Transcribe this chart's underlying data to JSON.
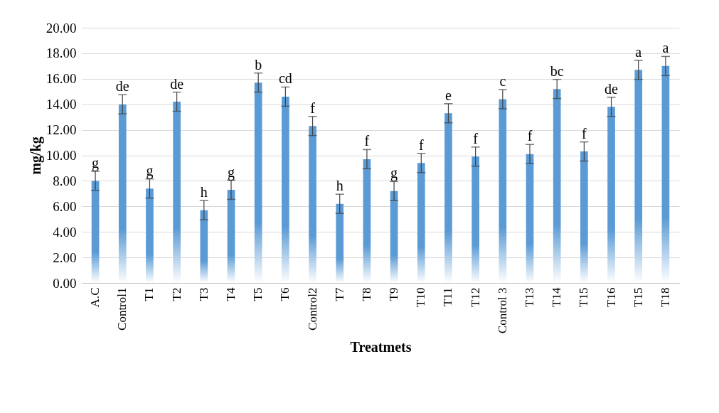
{
  "chart_data": {
    "type": "bar",
    "xlabel": "Treatmets",
    "ylabel": "mg/kg",
    "categories": [
      "A.C",
      "Control1",
      "T1",
      "T2",
      "T3",
      "T4",
      "T5",
      "T6",
      "Control2",
      "T7",
      "T8",
      "T9",
      "T10",
      "T11",
      "T12",
      "Control 3",
      "T13",
      "T14",
      "T15",
      "T16",
      "T15",
      "T18"
    ],
    "values": [
      8.0,
      14.0,
      7.4,
      14.2,
      5.7,
      7.3,
      15.7,
      14.6,
      12.3,
      6.2,
      9.7,
      7.2,
      9.4,
      13.3,
      9.9,
      14.4,
      10.1,
      15.2,
      10.3,
      13.8,
      16.7,
      17.0
    ],
    "errors": [
      0.75,
      0.75,
      0.75,
      0.75,
      0.75,
      0.75,
      0.75,
      0.75,
      0.75,
      0.75,
      0.75,
      0.75,
      0.75,
      0.75,
      0.75,
      0.75,
      0.75,
      0.75,
      0.75,
      0.75,
      0.75,
      0.75
    ],
    "value_labels": [
      "g",
      "de",
      "g",
      "de",
      "h",
      "g",
      "b",
      "cd",
      "f",
      "h",
      "f",
      "g",
      "f",
      "e",
      "f",
      "c",
      "f",
      "bc",
      "f",
      "de",
      "a",
      "a"
    ],
    "color": "#5b9bd5",
    "ylim": [
      0,
      20
    ],
    "yticks": [
      {
        "value": 0,
        "label": "0.00"
      },
      {
        "value": 2,
        "label": "2.00"
      },
      {
        "value": 4,
        "label": "4.00"
      },
      {
        "value": 6,
        "label": "6.00"
      },
      {
        "value": 8,
        "label": "8.00"
      },
      {
        "value": 10,
        "label": "10.00"
      },
      {
        "value": 12,
        "label": "12.00"
      },
      {
        "value": 14,
        "label": "14.00"
      },
      {
        "value": 16,
        "label": "16.00"
      },
      {
        "value": 18,
        "label": "18.00"
      },
      {
        "value": 20,
        "label": "20.00"
      }
    ],
    "grid": "y"
  }
}
